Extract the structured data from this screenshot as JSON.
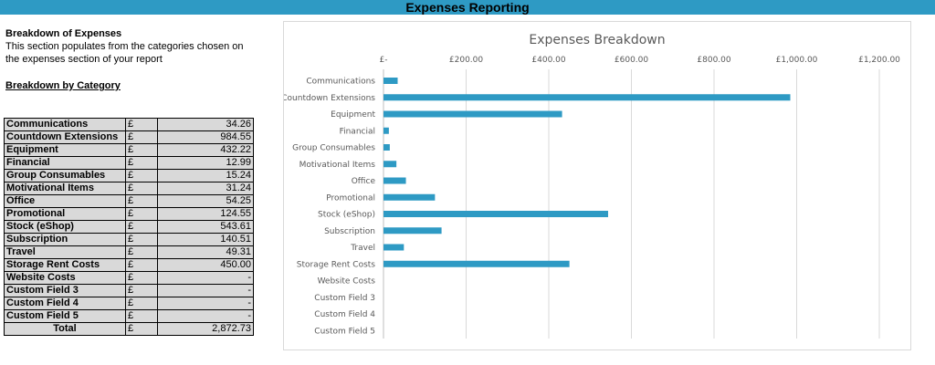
{
  "header": {
    "title": "Expenses Reporting"
  },
  "section": {
    "title": "Breakdown of Expenses",
    "description": "This section populates from the categories chosen on the expenses section of your report",
    "subtitle": "Breakdown by Category"
  },
  "table": {
    "rows": [
      {
        "category": "Communications",
        "currency": "£",
        "amount": "34.26"
      },
      {
        "category": "Countdown Extensions",
        "currency": "£",
        "amount": "984.55"
      },
      {
        "category": "Equipment",
        "currency": "£",
        "amount": "432.22"
      },
      {
        "category": "Financial",
        "currency": "£",
        "amount": "12.99"
      },
      {
        "category": "Group Consumables",
        "currency": "£",
        "amount": "15.24"
      },
      {
        "category": "Motivational Items",
        "currency": "£",
        "amount": "31.24"
      },
      {
        "category": "Office",
        "currency": "£",
        "amount": "54.25"
      },
      {
        "category": "Promotional",
        "currency": "£",
        "amount": "124.55"
      },
      {
        "category": "Stock (eShop)",
        "currency": "£",
        "amount": "543.61"
      },
      {
        "category": "Subscription",
        "currency": "£",
        "amount": "140.51"
      },
      {
        "category": "Travel",
        "currency": "£",
        "amount": "49.31"
      },
      {
        "category": "Storage Rent Costs",
        "currency": "£",
        "amount": "450.00"
      },
      {
        "category": "Website Costs",
        "currency": "£",
        "amount": "-"
      },
      {
        "category": "Custom Field 3",
        "currency": "£",
        "amount": "-"
      },
      {
        "category": "Custom Field 4",
        "currency": "£",
        "amount": "-"
      },
      {
        "category": "Custom Field 5",
        "currency": "£",
        "amount": "-"
      }
    ],
    "total": {
      "label": "Total",
      "currency": "£",
      "amount": "2,872.73"
    }
  },
  "chart_data": {
    "type": "bar",
    "orientation": "horizontal",
    "title": "Expenses Breakdown",
    "categories": [
      "Communications",
      "Countdown Extensions",
      "Equipment",
      "Financial",
      "Group Consumables",
      "Motivational Items",
      "Office",
      "Promotional",
      "Stock (eShop)",
      "Subscription",
      "Travel",
      "Storage Rent Costs",
      "Website Costs",
      "Custom Field 3",
      "Custom Field 4",
      "Custom Field 5"
    ],
    "values": [
      34.26,
      984.55,
      432.22,
      12.99,
      15.24,
      31.24,
      54.25,
      124.55,
      543.61,
      140.51,
      49.31,
      450.0,
      0,
      0,
      0,
      0
    ],
    "xticks": [
      0,
      200,
      400,
      600,
      800,
      1000,
      1200
    ],
    "xtick_labels": [
      "£-",
      "£200.00",
      "£400.00",
      "£600.00",
      "£800.00",
      "£1,000.00",
      "£1,200.00"
    ],
    "xlim": [
      0,
      1200
    ],
    "xaxis_position": "top",
    "grid": true,
    "legend": "none",
    "colors": {
      "bar": "#2e9ac4",
      "grid": "#d9d9d9",
      "title": "#595959",
      "label": "#595959"
    }
  }
}
